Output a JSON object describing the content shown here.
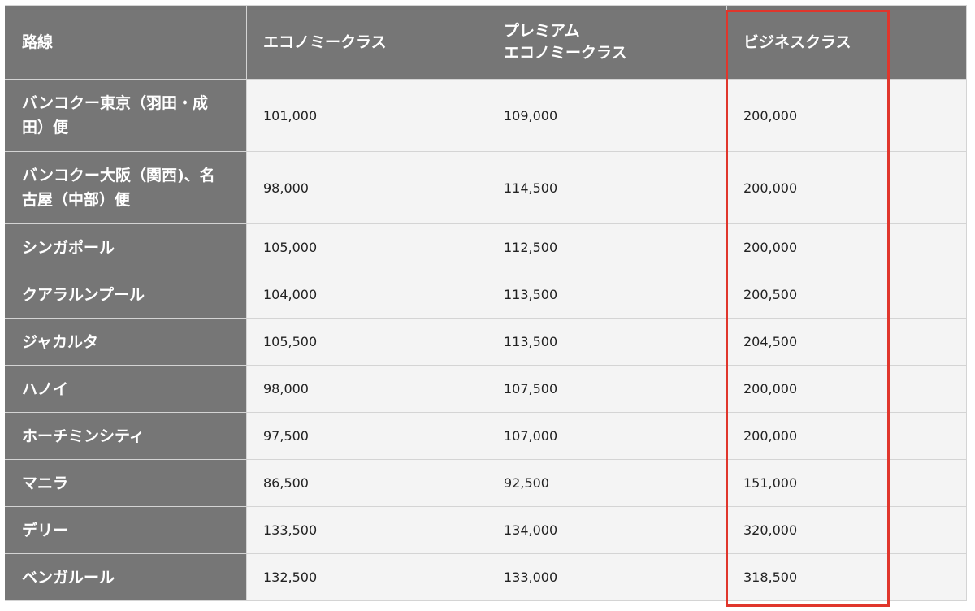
{
  "table": {
    "headers": [
      "路線",
      "エコノミークラス",
      "プレミアム\nエコノミークラス",
      "ビジネスクラス"
    ],
    "rows": [
      {
        "route": "バンコクー東京（羽田・成田）便",
        "economy": "101,000",
        "premium": "109,000",
        "business": "200,000"
      },
      {
        "route": "バンコクー大阪（関西)、名古屋（中部）便",
        "economy": "98,000",
        "premium": "114,500",
        "business": "200,000"
      },
      {
        "route": "シンガポール",
        "economy": "105,000",
        "premium": "112,500",
        "business": "200,000"
      },
      {
        "route": "クアラルンプール",
        "economy": "104,000",
        "premium": "113,500",
        "business": "200,500"
      },
      {
        "route": "ジャカルタ",
        "economy": "105,500",
        "premium": "113,500",
        "business": "204,500"
      },
      {
        "route": "ハノイ",
        "economy": "98,000",
        "premium": "107,500",
        "business": "200,000"
      },
      {
        "route": "ホーチミンシティ",
        "economy": "97,500",
        "premium": "107,000",
        "business": "200,000"
      },
      {
        "route": "マニラ",
        "economy": "86,500",
        "premium": "92,500",
        "business": "151,000"
      },
      {
        "route": "デリー",
        "economy": "133,500",
        "premium": "134,000",
        "business": "320,000"
      },
      {
        "route": "ベンガルール",
        "economy": "132,500",
        "premium": "133,000",
        "business": "318,500"
      }
    ]
  },
  "colors": {
    "header_bg": "#767676",
    "cell_bg": "#f4f4f4",
    "highlight": "#e0362c"
  }
}
